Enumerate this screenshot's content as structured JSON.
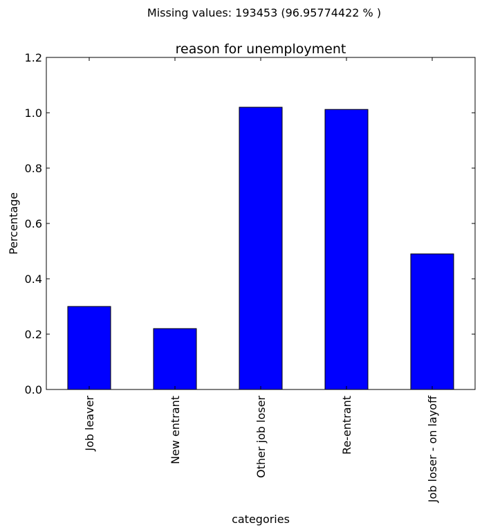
{
  "suptitle": "Missing values: 193453 (96.95774422 % )",
  "chart_data": {
    "type": "bar",
    "title": "reason for unemployment",
    "xlabel": "categories",
    "ylabel": "Percentage",
    "categories": [
      "Job leaver",
      "New entrant",
      "Other job loser",
      "Re-entrant",
      "Job loser - on layoff"
    ],
    "values": [
      0.3,
      0.22,
      1.02,
      1.012,
      0.49
    ],
    "ylim": [
      0,
      1.2
    ],
    "yticks": [
      "0.0",
      "0.2",
      "0.4",
      "0.6",
      "0.8",
      "1.0",
      "1.2"
    ],
    "bar_color": "#0000ff",
    "grid": false,
    "legend": "none"
  }
}
